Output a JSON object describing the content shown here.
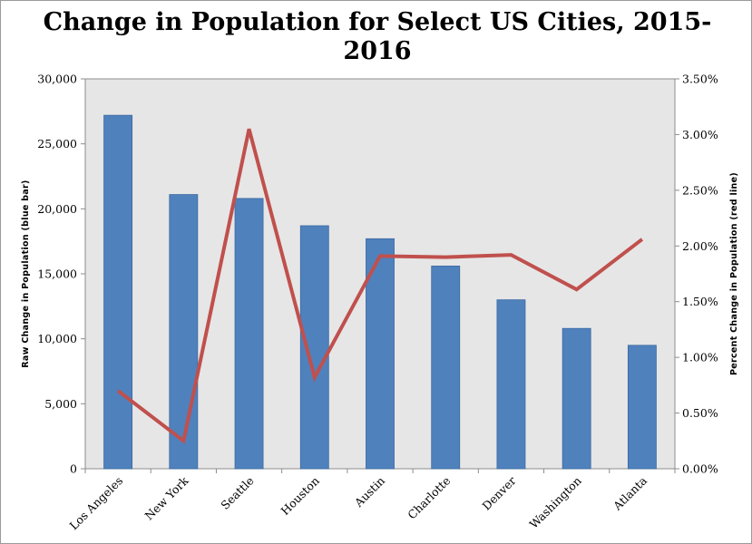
{
  "chart_data": {
    "type": "bar",
    "title": "Change in Population for Select US Cities, 2015-2016",
    "categories": [
      "Los Angeles",
      "New York",
      "Seattle",
      "Houston",
      "Austin",
      "Charlotte",
      "Denver",
      "Washington",
      "Atlanta"
    ],
    "series": [
      {
        "type": "bar",
        "axis": "left",
        "color": "#4f81bd",
        "values": [
          27200,
          21100,
          20800,
          18700,
          17700,
          15600,
          13000,
          10800,
          9500
        ]
      },
      {
        "type": "line",
        "axis": "right",
        "color": "#c0504d",
        "values": [
          0.7,
          0.25,
          3.05,
          0.82,
          1.91,
          1.9,
          1.92,
          1.61,
          2.06
        ]
      }
    ],
    "ylabel": "Raw  Change  in  Population  (blue  bar)",
    "y2label": "Percent  Change  in  Population  (red  line)",
    "ylim": [
      0,
      30000
    ],
    "y2lim": [
      0,
      3.5
    ],
    "yticks": [
      "0",
      "5,000",
      "10,000",
      "15,000",
      "20,000",
      "25,000",
      "30,000"
    ],
    "y2ticks": [
      "0.00%",
      "0.50%",
      "1.00%",
      "1.50%",
      "2.00%",
      "2.50%",
      "3.00%",
      "3.50%"
    ],
    "plot_background": "#e6e6e6",
    "grid": false,
    "legend": "none"
  }
}
